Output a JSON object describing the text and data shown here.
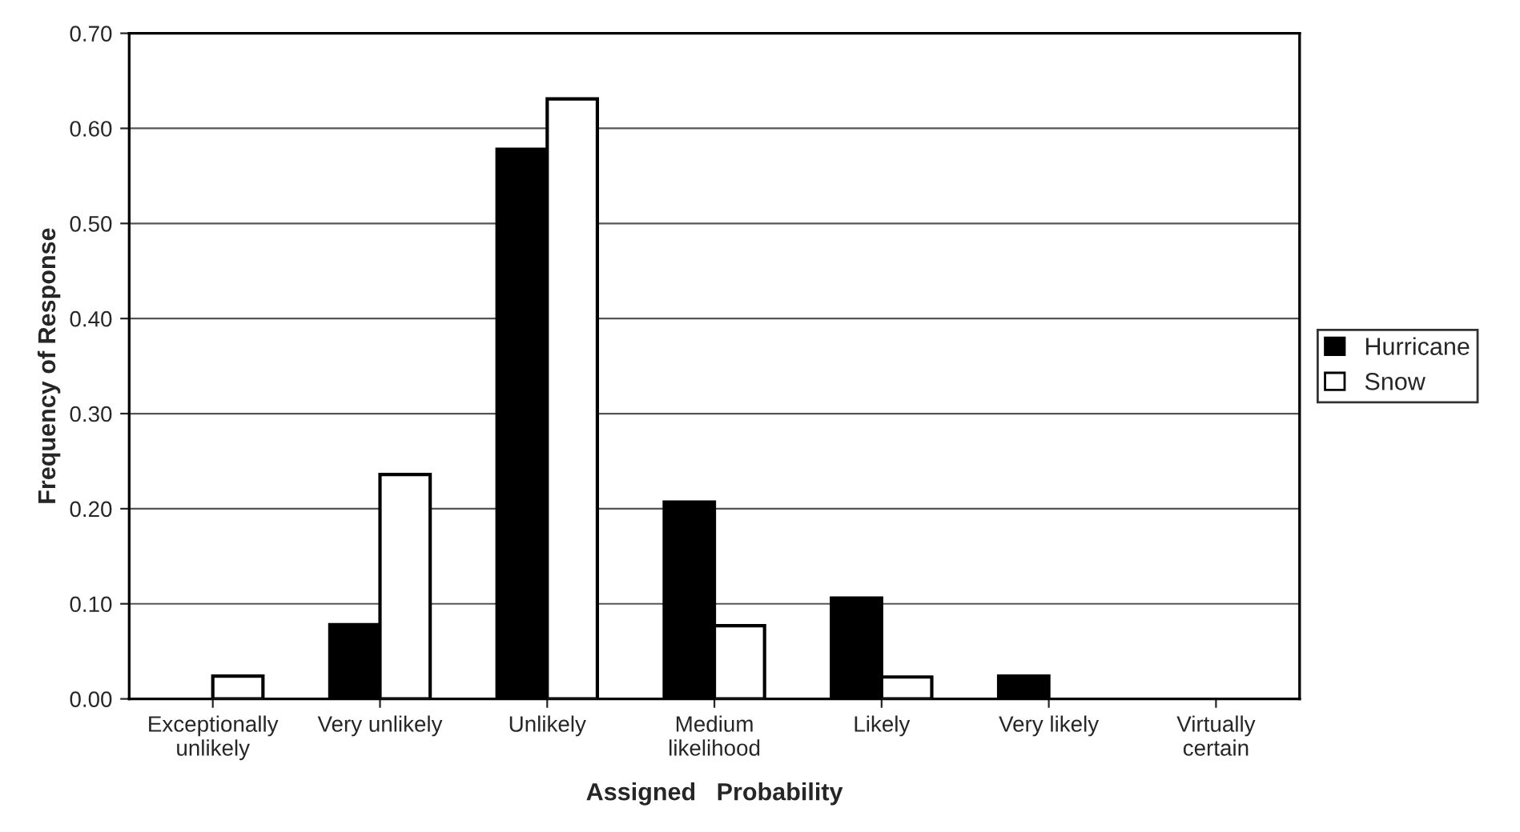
{
  "chart_data": {
    "type": "bar",
    "xlabel": "Assigned   Probability",
    "ylabel": "Frequency of Response",
    "categories": [
      "Exceptionally\nunlikely",
      "Very unlikely",
      "Unlikely",
      "Medium\nlikelihood",
      "Likely",
      "Very likely",
      "Virtually\ncertain"
    ],
    "series": [
      {
        "name": "Hurricane",
        "color": "#000000",
        "values": [
          0,
          0.078,
          0.578,
          0.207,
          0.106,
          0.024,
          0
        ]
      },
      {
        "name": "Snow",
        "color": "#ffffff",
        "values": [
          0.024,
          0.236,
          0.631,
          0.077,
          0.023,
          0,
          0
        ]
      }
    ],
    "ylim": [
      0,
      0.7
    ],
    "yticks": [
      {
        "value": 0,
        "label": "0.00"
      },
      {
        "value": 0.1,
        "label": "0.10"
      },
      {
        "value": 0.2,
        "label": "0.20"
      },
      {
        "value": 0.3,
        "label": "0.30"
      },
      {
        "value": 0.4,
        "label": "0.40"
      },
      {
        "value": 0.5,
        "label": "0.50"
      },
      {
        "value": 0.6,
        "label": "0.60"
      },
      {
        "value": 0.7,
        "label": "0.70"
      }
    ],
    "grid": "y",
    "legend": "right"
  }
}
